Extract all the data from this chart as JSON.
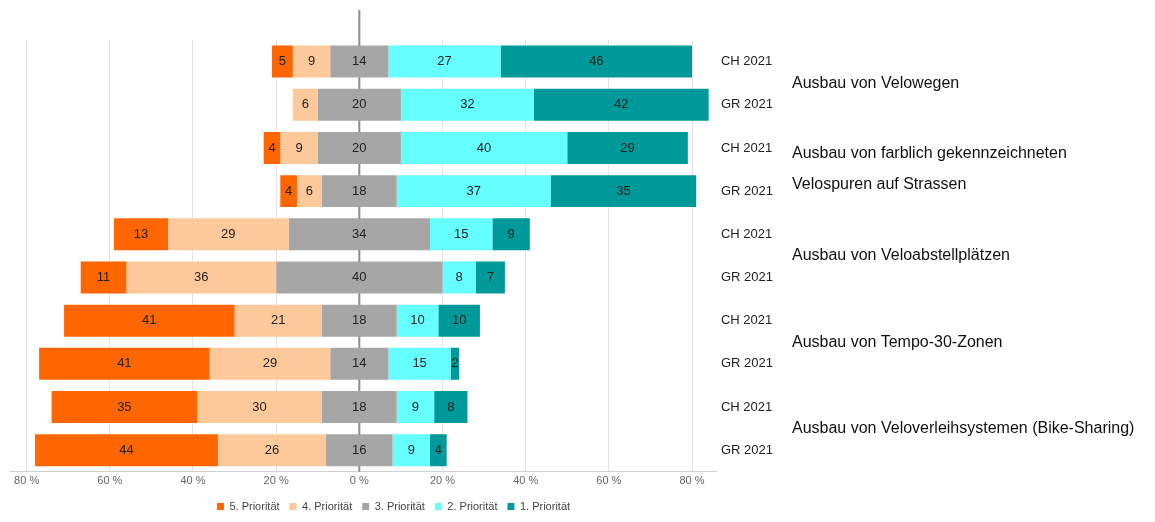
{
  "chart_data": {
    "type": "bar",
    "orientation": "horizontal",
    "categories": [
      "CH 2021",
      "GR 2021",
      "CH 2021",
      "GR 2021",
      "CH 2021",
      "GR 2021",
      "CH 2021",
      "GR 2021",
      "CH 2021",
      "GR 2021"
    ],
    "series": [
      {
        "name": "5. Priorität",
        "color": "#ff6600",
        "values": [
          5,
          null,
          4,
          4,
          13,
          11,
          41,
          41,
          35,
          44
        ],
        "base": [
          -21,
          null,
          -23,
          -19,
          -59,
          -67,
          -71,
          -77,
          -74,
          -78
        ]
      },
      {
        "name": "4. Priorität",
        "color": "#fdc99b",
        "values": [
          9,
          6,
          9,
          6,
          29,
          36,
          21,
          29,
          30,
          26
        ],
        "base": [
          -16,
          -16,
          -19,
          -15,
          -46,
          -56,
          -30,
          -36,
          -39,
          -34
        ]
      },
      {
        "name": "3. Priorität",
        "color": "#a6a6a6",
        "values": [
          14,
          20,
          20,
          18,
          34,
          40,
          18,
          14,
          18,
          16
        ],
        "base": [
          -7,
          -10,
          -10,
          -9,
          -17,
          -20,
          -9,
          -7,
          -9,
          -8
        ]
      },
      {
        "name": "2. Priorität",
        "color": "#66ffff",
        "values": [
          27,
          32,
          40,
          37,
          15,
          8,
          10,
          15,
          9,
          9
        ],
        "base": [
          7,
          10,
          10,
          9,
          17,
          20,
          9,
          7,
          9,
          8
        ]
      },
      {
        "name": "1. Priorität",
        "color": "#009999",
        "values": [
          46,
          42,
          29,
          35,
          9,
          7,
          10,
          2,
          8,
          4
        ],
        "base": [
          34,
          42,
          50,
          46,
          32,
          28,
          19,
          22,
          18,
          17
        ]
      }
    ],
    "xlim": [
      -84,
      86
    ],
    "xticks": [
      {
        "value": -80,
        "label": "80 %"
      },
      {
        "value": -60,
        "label": "60 %"
      },
      {
        "value": -40,
        "label": "40 %"
      },
      {
        "value": -20,
        "label": "20 %"
      },
      {
        "value": 0,
        "label": "0 %"
      },
      {
        "value": 20,
        "label": "20 %"
      },
      {
        "value": 40,
        "label": "40 %"
      },
      {
        "value": 60,
        "label": "60 %"
      },
      {
        "value": 80,
        "label": "80 %"
      }
    ],
    "ref_lines": [
      {
        "axis": "x",
        "value": 0,
        "color": "#8c8c8c"
      }
    ],
    "annotations": [
      "Ausbau von Velowegen",
      "Ausbau von farblich gekennzeichneten Velospuren auf Strassen",
      "Ausbau von Veloabstellplätzen",
      "Ausbau von Tempo-30-Zonen",
      "Ausbau von Veloverleihsystemen (Bike-Sharing)"
    ],
    "data_labels": true,
    "grid": "x",
    "legend": "bottom"
  }
}
